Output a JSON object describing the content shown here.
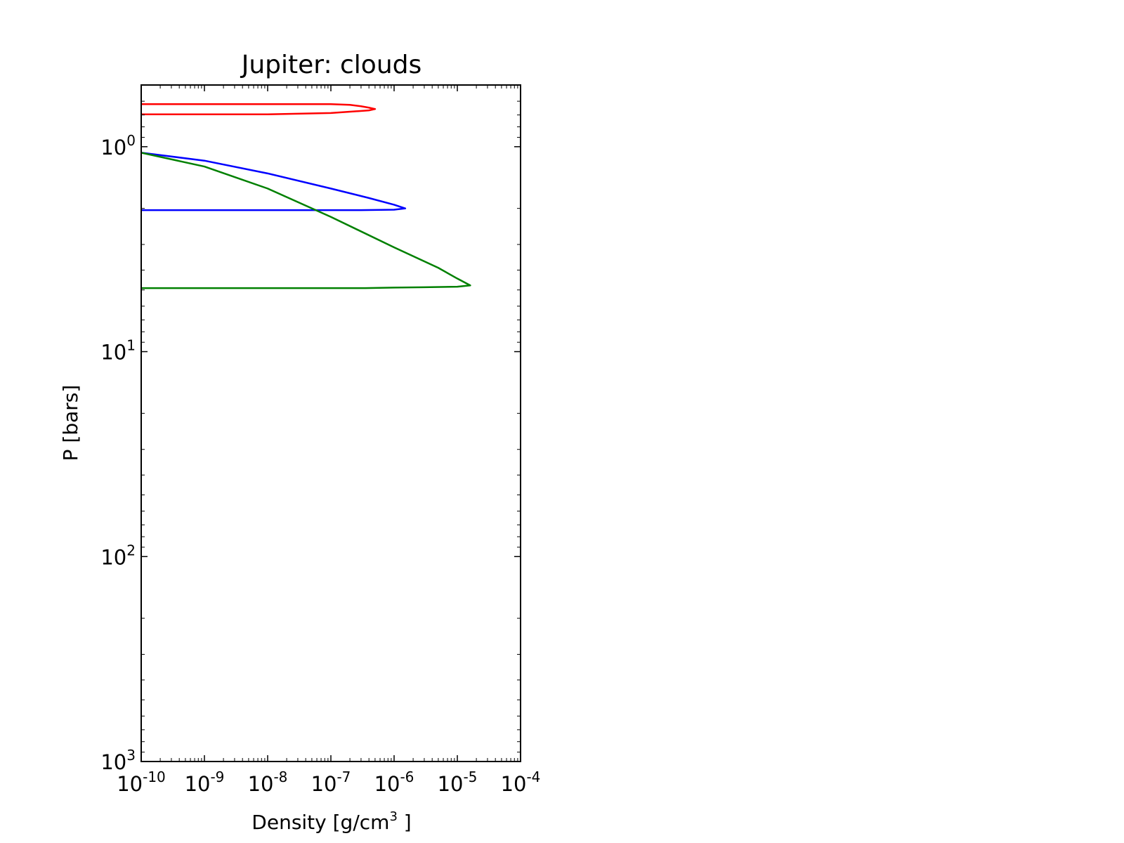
{
  "chart_data": {
    "type": "line",
    "title": "Jupiter: clouds",
    "xlabel": "Density [g/cm",
    "xlabel_superscript": "3",
    "xlabel_suffix": " ]",
    "ylabel": "P [bars]",
    "x_scale": "log",
    "y_scale": "log",
    "y_inverted": true,
    "xlim": [
      1e-10,
      0.0001
    ],
    "ylim": [
      0.5,
      1000
    ],
    "x_ticks": [
      {
        "base": "10",
        "exp": "-10"
      },
      {
        "base": "10",
        "exp": "-9"
      },
      {
        "base": "10",
        "exp": "-8"
      },
      {
        "base": "10",
        "exp": "-7"
      },
      {
        "base": "10",
        "exp": "-6"
      },
      {
        "base": "10",
        "exp": "-5"
      },
      {
        "base": "10",
        "exp": "-4"
      }
    ],
    "y_ticks": [
      {
        "base": "10",
        "exp": "0"
      },
      {
        "base": "10",
        "exp": "1"
      },
      {
        "base": "10",
        "exp": "2"
      },
      {
        "base": "10",
        "exp": "3"
      }
    ],
    "grid": false,
    "legend": "none",
    "series": [
      {
        "color": "#ff0000",
        "points": [
          [
            1e-10,
            0.62
          ],
          [
            1e-07,
            0.62
          ],
          [
            2e-07,
            0.625
          ],
          [
            3e-07,
            0.635
          ],
          [
            4e-07,
            0.645
          ],
          [
            5e-07,
            0.655
          ],
          [
            4e-07,
            0.665
          ],
          [
            2e-07,
            0.675
          ],
          [
            1e-07,
            0.685
          ],
          [
            1e-08,
            0.695
          ],
          [
            1e-10,
            0.695
          ]
        ]
      },
      {
        "color": "#0000ff",
        "points": [
          [
            1e-10,
            1.07
          ],
          [
            1e-09,
            1.17
          ],
          [
            1e-08,
            1.35
          ],
          [
            1e-07,
            1.6
          ],
          [
            4e-07,
            1.78
          ],
          [
            1e-06,
            1.92
          ],
          [
            1.5e-06,
            2.0
          ],
          [
            1e-06,
            2.03
          ],
          [
            3e-07,
            2.04
          ],
          [
            1e-07,
            2.04
          ],
          [
            1e-08,
            2.04
          ],
          [
            1e-10,
            2.04
          ]
        ]
      },
      {
        "color": "#008000",
        "points": [
          [
            1e-10,
            1.07
          ],
          [
            1e-09,
            1.25
          ],
          [
            1e-08,
            1.6
          ],
          [
            1e-07,
            2.2
          ],
          [
            1e-06,
            3.1
          ],
          [
            5e-06,
            3.9
          ],
          [
            1e-05,
            4.4
          ],
          [
            1.6e-05,
            4.75
          ],
          [
            1e-05,
            4.82
          ],
          [
            3e-06,
            4.85
          ],
          [
            1e-06,
            4.87
          ],
          [
            3.5e-07,
            4.9
          ],
          [
            1e-07,
            4.9
          ],
          [
            1e-08,
            4.9
          ],
          [
            1e-10,
            4.9
          ]
        ]
      }
    ]
  }
}
